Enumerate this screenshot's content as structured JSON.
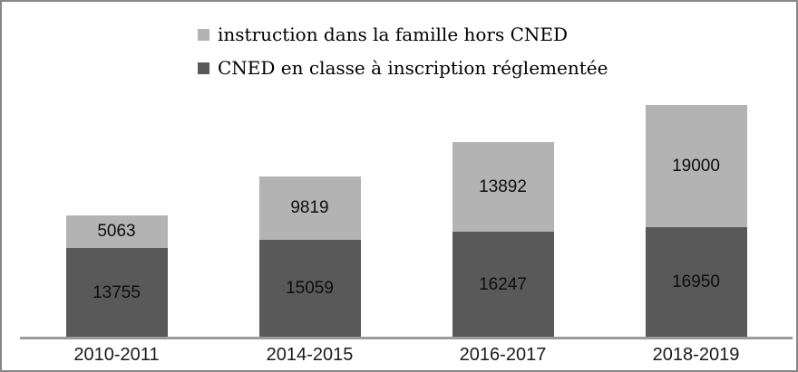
{
  "frame": {
    "background": "#ffffff",
    "border_color": "#878787"
  },
  "legend": {
    "items": [
      {
        "label": "instruction dans la famille hors CNED",
        "color": "#b3b3b3"
      },
      {
        "label": "CNED en classe à inscription réglementée",
        "color": "#595959"
      }
    ]
  },
  "chart_data": {
    "type": "bar",
    "stacked": true,
    "title": "",
    "xlabel": "",
    "ylabel": "",
    "categories": [
      "2010-2011",
      "2014-2015",
      "2016-2017",
      "2018-2019"
    ],
    "series": [
      {
        "name": "CNED en classe à inscription réglementée",
        "color": "#595959",
        "values": [
          13755,
          15059,
          16247,
          16950
        ]
      },
      {
        "name": "instruction dans la famille hors CNED",
        "color": "#b3b3b3",
        "values": [
          5063,
          9819,
          13892,
          19000
        ]
      }
    ],
    "totals": [
      18818,
      24878,
      30139,
      35950
    ],
    "ylim": [
      0,
      40000
    ],
    "grid": false,
    "y_axis_visible": false,
    "legend_position": "top-left",
    "data_labels": "inside-center",
    "data_label_color": "#0d0d0d",
    "axis_line_color": "#9b9b9b"
  }
}
